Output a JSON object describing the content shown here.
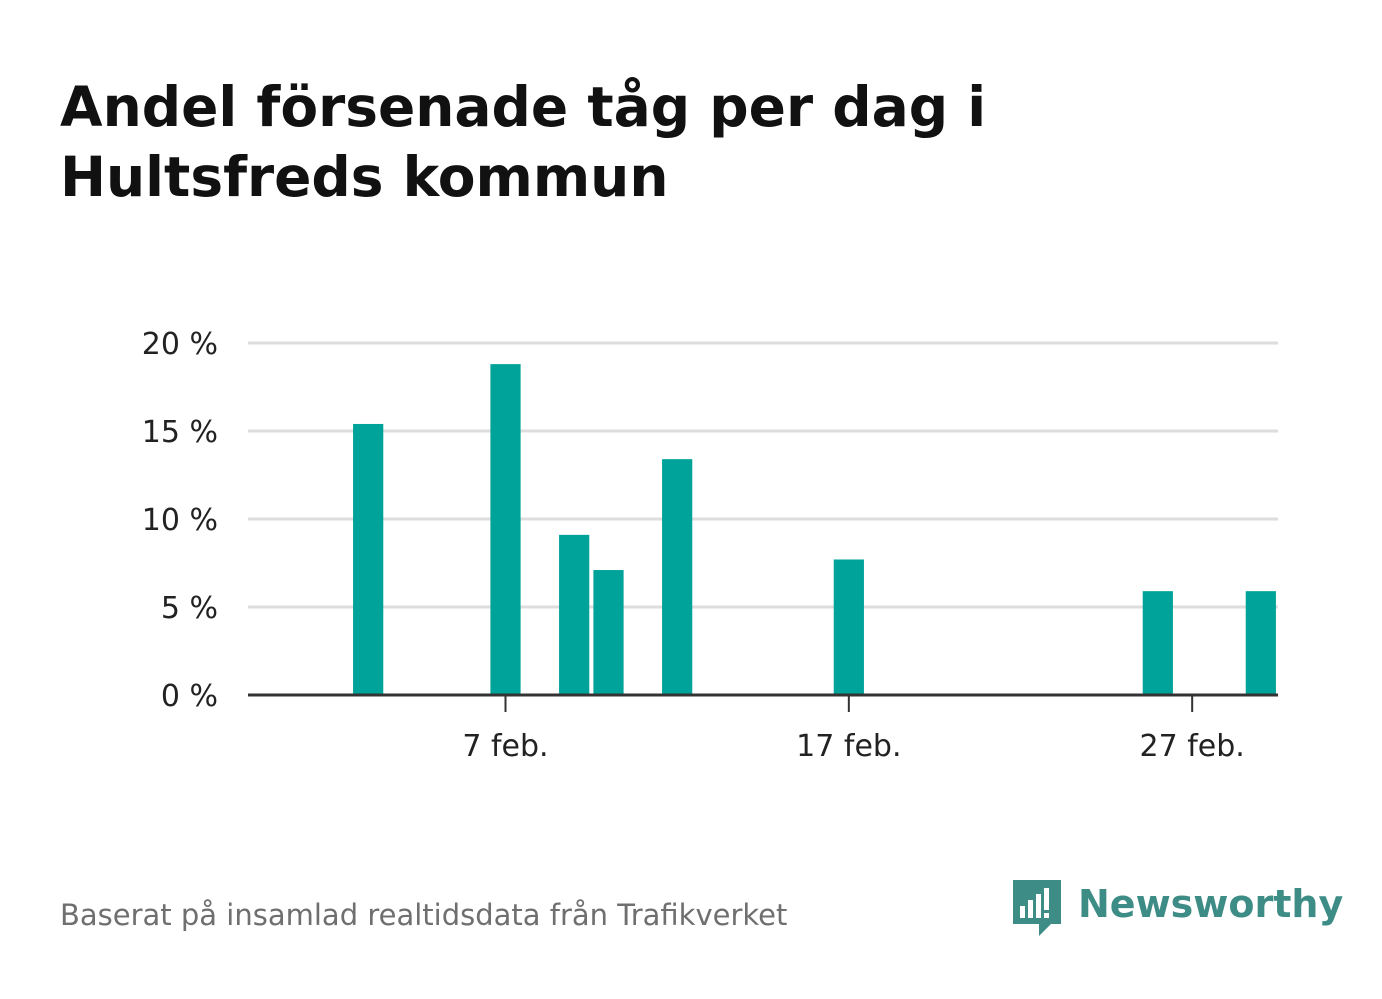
{
  "title": "Andel försenade tåg per dag i Hultsfreds kommun",
  "source": "Baserat på insamlad realtidsdata från Trafikverket",
  "brand": {
    "name": "Newsworthy",
    "color": "#3e8c86",
    "icon": "bar-chart-speech-bubble-icon"
  },
  "colors": {
    "bar": "#00a39a",
    "grid": "#dddddd",
    "axis": "#333333"
  },
  "chart_data": {
    "type": "bar",
    "title": "Andel försenade tåg per dag i Hultsfreds kommun",
    "xlabel": "",
    "ylabel": "",
    "x_unit": "day",
    "x_range": [
      "2024-01-31",
      "2024-03-01"
    ],
    "x_ticks": [
      {
        "date": "2024-02-07",
        "label": "7 feb."
      },
      {
        "date": "2024-02-17",
        "label": "17 feb."
      },
      {
        "date": "2024-02-27",
        "label": "27 feb."
      }
    ],
    "y_ticks": [
      {
        "value": 0,
        "label": "0 %"
      },
      {
        "value": 5,
        "label": "5 %"
      },
      {
        "value": 10,
        "label": "10 %"
      },
      {
        "value": 15,
        "label": "15 %"
      },
      {
        "value": 20,
        "label": "20 %"
      }
    ],
    "ylim": [
      0,
      20
    ],
    "grid": true,
    "bars": [
      {
        "date": "2024-02-03",
        "value": 15.4
      },
      {
        "date": "2024-02-07",
        "value": 18.8
      },
      {
        "date": "2024-02-09",
        "value": 9.1
      },
      {
        "date": "2024-02-10",
        "value": 7.1
      },
      {
        "date": "2024-02-12",
        "value": 13.4
      },
      {
        "date": "2024-02-17",
        "value": 7.7
      },
      {
        "date": "2024-02-26",
        "value": 5.9
      },
      {
        "date": "2024-02-29",
        "value": 5.9
      }
    ]
  }
}
